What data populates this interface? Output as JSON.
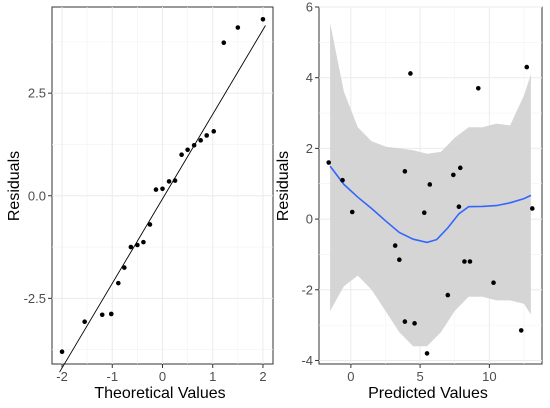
{
  "chart_data": [
    {
      "type": "scatter",
      "subtype": "qq-plot",
      "xlabel": "Theoretical Values",
      "ylabel": "Residuals",
      "xlim": [
        -2.2,
        2.2
      ],
      "ylim": [
        -4.1,
        4.6
      ],
      "xticks": [
        {
          "value": -2,
          "label": "-2"
        },
        {
          "value": -1,
          "label": "-1"
        },
        {
          "value": 0,
          "label": "0"
        },
        {
          "value": 1,
          "label": "1"
        },
        {
          "value": 2,
          "label": "2"
        }
      ],
      "yticks": [
        {
          "value": -2.5,
          "label": "-2.5"
        },
        {
          "value": 0,
          "label": "0.0"
        },
        {
          "value": 2.5,
          "label": "2.5"
        }
      ],
      "grid": true,
      "points": [
        {
          "x": -2.0,
          "y": -3.8
        },
        {
          "x": -1.55,
          "y": -3.07
        },
        {
          "x": -1.2,
          "y": -2.9
        },
        {
          "x": -1.02,
          "y": -2.88
        },
        {
          "x": -0.88,
          "y": -2.13
        },
        {
          "x": -0.76,
          "y": -1.75
        },
        {
          "x": -0.63,
          "y": -1.25
        },
        {
          "x": -0.5,
          "y": -1.2
        },
        {
          "x": -0.38,
          "y": -1.13
        },
        {
          "x": -0.25,
          "y": -0.7
        },
        {
          "x": -0.13,
          "y": 0.15
        },
        {
          "x": 0.0,
          "y": 0.17
        },
        {
          "x": 0.13,
          "y": 0.35
        },
        {
          "x": 0.25,
          "y": 0.37
        },
        {
          "x": 0.38,
          "y": 1.0
        },
        {
          "x": 0.5,
          "y": 1.12
        },
        {
          "x": 0.63,
          "y": 1.23
        },
        {
          "x": 0.76,
          "y": 1.35
        },
        {
          "x": 0.88,
          "y": 1.47
        },
        {
          "x": 1.02,
          "y": 1.57
        },
        {
          "x": 1.22,
          "y": 3.73
        },
        {
          "x": 1.5,
          "y": 4.1
        },
        {
          "x": 2.0,
          "y": 4.3
        }
      ],
      "reference_line": {
        "x1": -2.05,
        "y1": -4.3,
        "x2": 2.05,
        "y2": 4.15
      }
    },
    {
      "type": "scatter",
      "subtype": "residuals-vs-fitted",
      "xlabel": "Predicted Values",
      "ylabel": "Residuals",
      "xlim": [
        -2.3,
        13.8
      ],
      "ylim": [
        -4.1,
        6.0
      ],
      "xticks": [
        {
          "value": 0,
          "label": "0"
        },
        {
          "value": 5,
          "label": "5"
        },
        {
          "value": 10,
          "label": "10"
        }
      ],
      "yticks": [
        {
          "value": -4,
          "label": "-4"
        },
        {
          "value": -2,
          "label": "-2"
        },
        {
          "value": 0,
          "label": "0"
        },
        {
          "value": 2,
          "label": "2"
        },
        {
          "value": 4,
          "label": "4"
        },
        {
          "value": 6,
          "label": "6"
        }
      ],
      "grid": true,
      "points": [
        {
          "x": -1.6,
          "y": 1.6
        },
        {
          "x": -0.6,
          "y": 1.1
        },
        {
          "x": 0.1,
          "y": 0.2
        },
        {
          "x": 3.2,
          "y": -0.75
        },
        {
          "x": 3.5,
          "y": -1.15
        },
        {
          "x": 3.9,
          "y": 1.35
        },
        {
          "x": 3.9,
          "y": -2.9
        },
        {
          "x": 4.3,
          "y": 4.12
        },
        {
          "x": 4.6,
          "y": -2.95
        },
        {
          "x": 5.3,
          "y": 0.18
        },
        {
          "x": 5.5,
          "y": -3.8
        },
        {
          "x": 5.7,
          "y": 0.98
        },
        {
          "x": 7.0,
          "y": -2.15
        },
        {
          "x": 7.4,
          "y": 1.25
        },
        {
          "x": 7.8,
          "y": 0.35
        },
        {
          "x": 7.9,
          "y": 1.45
        },
        {
          "x": 8.2,
          "y": -1.2
        },
        {
          "x": 8.6,
          "y": -1.2
        },
        {
          "x": 9.2,
          "y": 3.7
        },
        {
          "x": 10.3,
          "y": -1.8
        },
        {
          "x": 12.3,
          "y": -3.15
        },
        {
          "x": 12.7,
          "y": 4.3
        },
        {
          "x": 13.1,
          "y": 0.3
        }
      ],
      "smooth_line": [
        {
          "x": -1.5,
          "y": 1.5
        },
        {
          "x": -0.5,
          "y": 0.98
        },
        {
          "x": 0.5,
          "y": 0.62
        },
        {
          "x": 1.5,
          "y": 0.3
        },
        {
          "x": 2.5,
          "y": -0.05
        },
        {
          "x": 3.5,
          "y": -0.38
        },
        {
          "x": 4.5,
          "y": -0.57
        },
        {
          "x": 5.5,
          "y": -0.66
        },
        {
          "x": 6.2,
          "y": -0.58
        },
        {
          "x": 7.0,
          "y": -0.25
        },
        {
          "x": 7.8,
          "y": 0.15
        },
        {
          "x": 8.5,
          "y": 0.35
        },
        {
          "x": 9.5,
          "y": 0.36
        },
        {
          "x": 10.5,
          "y": 0.38
        },
        {
          "x": 11.5,
          "y": 0.46
        },
        {
          "x": 12.5,
          "y": 0.58
        },
        {
          "x": 13.0,
          "y": 0.67
        }
      ],
      "confidence_band": {
        "x": [
          -1.5,
          -0.5,
          0.5,
          1.5,
          2.5,
          3.5,
          4.5,
          5.5,
          6.5,
          7.5,
          8.5,
          9.5,
          10.5,
          11.5,
          12.5,
          13.0
        ],
        "upper": [
          5.55,
          3.6,
          2.6,
          2.2,
          2.05,
          2.0,
          1.95,
          1.85,
          1.9,
          2.3,
          2.6,
          2.6,
          2.7,
          2.65,
          3.5,
          4.1
        ],
        "lower": [
          -2.6,
          -1.9,
          -1.6,
          -2.0,
          -2.6,
          -3.2,
          -3.6,
          -3.6,
          -3.2,
          -2.6,
          -2.2,
          -2.2,
          -2.3,
          -2.3,
          -2.4,
          -2.7
        ]
      },
      "colors": {
        "smooth": "#3366ff",
        "band": "#d3d3d3"
      }
    }
  ]
}
